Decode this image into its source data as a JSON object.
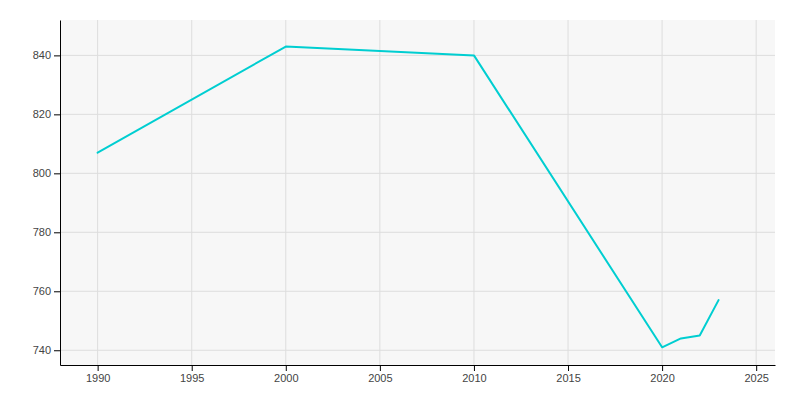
{
  "chart_data": {
    "type": "line",
    "x": [
      1990,
      2000,
      2010,
      2020,
      2021,
      2022,
      2023
    ],
    "values": [
      807,
      843,
      840,
      741,
      744,
      745,
      757
    ],
    "color": "#00CED1",
    "xlim": [
      1988,
      2026
    ],
    "ylim": [
      735,
      852
    ],
    "xticks": [
      1990,
      1995,
      2000,
      2005,
      2010,
      2015,
      2020,
      2025
    ],
    "yticks": [
      740,
      760,
      780,
      800,
      820,
      840
    ],
    "grid": true
  }
}
